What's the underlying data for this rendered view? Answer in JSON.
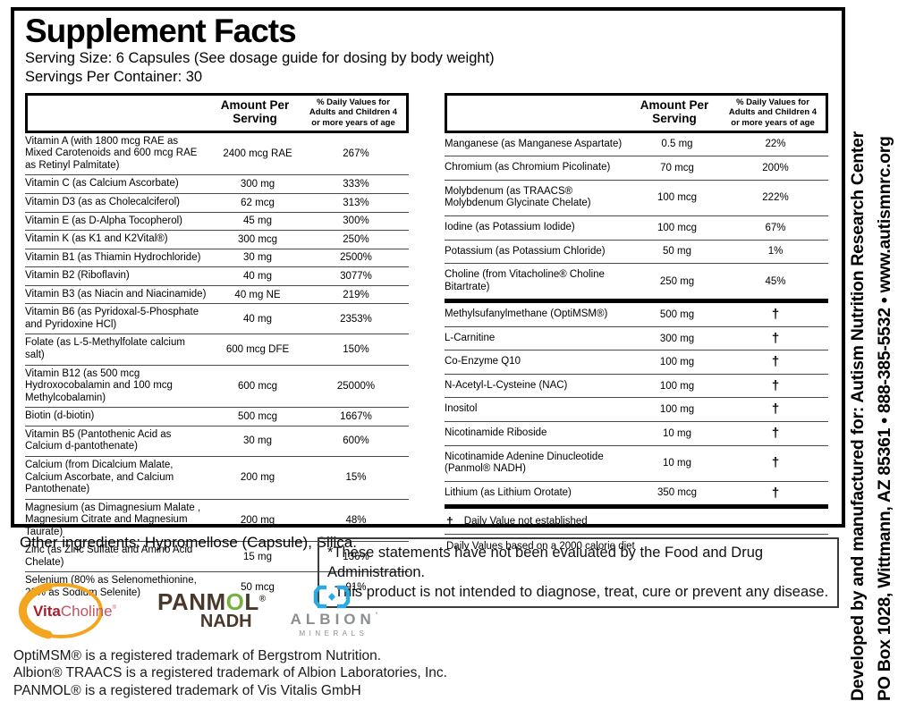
{
  "title": "Supplement Facts",
  "serving": {
    "size_line": "Serving Size: 6 Capsules (See dosage guide for dosing by body weight)",
    "per_container_line": "Servings Per Container: 30"
  },
  "table_header": {
    "amount": "Amount Per Serving",
    "dv": "% Daily Values for Adults and Children 4 or more years of age"
  },
  "left_table": {
    "rows": [
      {
        "name": "Vitamin A (with 1800 mcg RAE as Mixed Carotenoids and 600 mcg RAE as Retinyl Palmitate)",
        "amount": "2400 mcg RAE",
        "dv": "267%"
      },
      {
        "name": "Vitamin C (as Calcium Ascorbate)",
        "amount": "300 mg",
        "dv": "333%"
      },
      {
        "name": "Vitamin D3 (as as Cholecalciferol)",
        "amount": "62 mcg",
        "dv": "313%"
      },
      {
        "name": "Vitamin E (as D-Alpha Tocopherol)",
        "amount": "45 mg",
        "dv": "300%"
      },
      {
        "name": "Vitamin K (as K1 and K2Vital®)",
        "amount": "300 mcg",
        "dv": "250%"
      },
      {
        "name": "Vitamin B1 (as Thiamin Hydrochloride)",
        "amount": "30 mg",
        "dv": "2500%"
      },
      {
        "name": "Vitamin B2 (Riboflavin)",
        "amount": "40 mg",
        "dv": "3077%"
      },
      {
        "name": "Vitamin B3 (as Niacin and Niacinamide)",
        "amount": "40 mg NE",
        "dv": "219%"
      },
      {
        "name": "Vitamin B6 (as Pyridoxal-5-Phosphate and Pyridoxine HCl)",
        "amount": "40 mg",
        "dv": "2353%"
      },
      {
        "name": "Folate (as L-5-Methylfolate calcium salt)",
        "amount": "600 mcg DFE",
        "dv": "150%"
      },
      {
        "name": "Vitamin B12 (as 500 mcg Hydroxocobalamin and 100 mcg Methylcobalamin)",
        "amount": "600 mcg",
        "dv": "25000%"
      },
      {
        "name": "Biotin (d-biotin)",
        "amount": "500 mcg",
        "dv": "1667%"
      },
      {
        "name": "Vitamin B5 (Pantothenic Acid as Calcium d-pantothenate)",
        "amount": "30 mg",
        "dv": "600%"
      },
      {
        "name": "Calcium (from Dicalcium Malate, Calcium Ascorbate, and Calcium Pantothenate)",
        "amount": "200 mg",
        "dv": "15%"
      },
      {
        "name": "Magnesium (as Dimagnesium Malate , Magnesium Citrate and Magnesium Taurate)",
        "amount": "200 mg",
        "dv": "48%"
      },
      {
        "name": "Zinc (as Zinc Sulfate and Amino Acid Chelate)",
        "amount": "15 mg",
        "dv": "136%"
      },
      {
        "name": "Selenium (80% as Selenomethionine, 20% as Sodium Selenite)",
        "amount": "50 mcg",
        "dv": "91%"
      }
    ]
  },
  "right_table": {
    "rows": [
      {
        "name": "Manganese (as Manganese Aspartate)",
        "amount": "0.5 mg",
        "dv": "22%"
      },
      {
        "name": "Chromium (as Chromium Picolinate)",
        "amount": "70 mcg",
        "dv": "200%"
      },
      {
        "name": "Molybdenum (as TRAACS® Molybdenum Glycinate Chelate)",
        "amount": "100 mcg",
        "dv": "222%"
      },
      {
        "name": "Iodine (as Potassium Iodide)",
        "amount": "100 mcg",
        "dv": "67%"
      },
      {
        "name": "Potassium (as Potassium Chloride)",
        "amount": "50 mg",
        "dv": "1%"
      },
      {
        "name": "Choline (from Vitacholine® Choline Bitartrate)",
        "amount": "250 mg",
        "dv": "45%",
        "sep": "thick"
      },
      {
        "name": "Methylsufanylmethane (OptiMSM®)",
        "amount": "500 mg",
        "dv": "†"
      },
      {
        "name": "L-Carnitine",
        "amount": "300 mg",
        "dv": "†"
      },
      {
        "name": "Co-Enzyme Q10",
        "amount": "100 mg",
        "dv": "†"
      },
      {
        "name": "N-Acetyl-L-Cysteine (NAC)",
        "amount": "100 mg",
        "dv": "†"
      },
      {
        "name": "Inositol",
        "amount": "100 mg",
        "dv": "†"
      },
      {
        "name": "Nicotinamide Riboside",
        "amount": "10 mg",
        "dv": "†"
      },
      {
        "name": "Nicotinamide Adenine Dinucleotide (Panmol® NADH)",
        "amount": "10 mg",
        "dv": "†"
      },
      {
        "name": "Lithium (as Lithium Orotate)",
        "amount": "350 mcg",
        "dv": "†",
        "sep": "thick"
      }
    ],
    "dagger_symbol": "†",
    "dagger_note": "Daily Value not established",
    "dv_note": "Daily Values based on a 2000 calorie diet"
  },
  "other_ingredients": "Other ingredients: Hypromellose (Capsule), Silica.",
  "fda_disclaimer": {
    "line1": "*These statements have not been evaluated by the Food and Drug Administration.",
    "line2": "This product is not intended to diagnose, treat, cure or prevent any disease."
  },
  "logos": {
    "vitacholine": {
      "vita": "Vita",
      "choline": "Choline",
      "reg": "®"
    },
    "panmol": {
      "p1": "PANM",
      "o": "O",
      "p2": "L",
      "reg": "®",
      "nadh": "NADH"
    },
    "albion": {
      "name": "ALBION",
      "mark": "’",
      "sub": "MINERALS"
    }
  },
  "trademarks": [
    "OptiMSM® is a registered trademark of Bergstrom Nutrition.",
    "Albion® TRAACS is a registered trademark of Albion Laboratories, Inc.",
    "PANMOL® is a registered trademark of Vis Vitalis GmbH"
  ],
  "sidebar": {
    "manufacturer_line": "Developed by and manufactured for: Autism Nutrition Research Center",
    "contact_line": "PO Box 1028, Wittmann, AZ 85361 • 888-385-5532 • www.autismnrc.org"
  },
  "colors": {
    "accent_orange": "#F3A51F",
    "vitacholine_red": "#A81E2C",
    "vitacholine_red_light": "#C05460",
    "panmol_brown": "#4A382A",
    "panmol_green": "#76B043",
    "albion_blue": "#29ABE2",
    "albion_gray": "#8B8E90",
    "rule_thin": "#4A4A4A",
    "rule_thick": "#000000"
  }
}
